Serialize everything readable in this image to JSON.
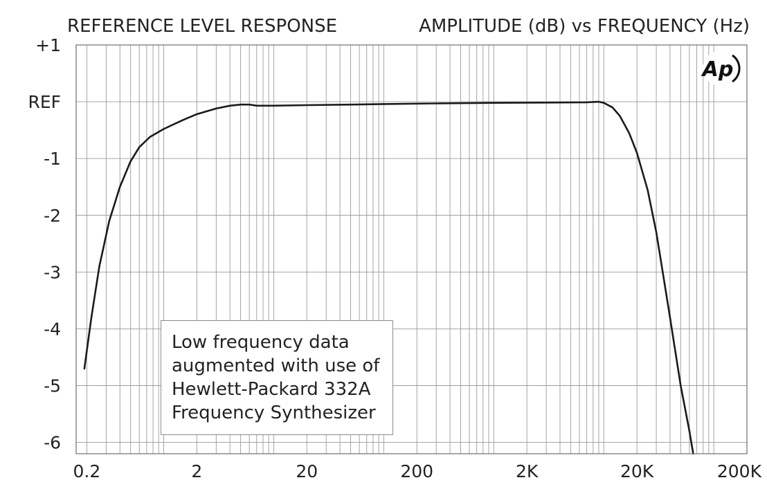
{
  "chart_data": {
    "type": "line",
    "title": "REFERENCE LEVEL RESPONSE",
    "subtitle": "AMPLITUDE (dB) vs FREQUENCY (Hz)",
    "x_scale": "log",
    "xlim": [
      0.16,
      200000
    ],
    "ylim": [
      -6.2,
      1
    ],
    "x_ticks": [
      {
        "value": 0.2,
        "label": "0.2"
      },
      {
        "value": 2,
        "label": "2"
      },
      {
        "value": 20,
        "label": "20"
      },
      {
        "value": 200,
        "label": "200"
      },
      {
        "value": 2000,
        "label": "2K"
      },
      {
        "value": 20000,
        "label": "20K"
      },
      {
        "value": 200000,
        "label": "200K"
      }
    ],
    "y_ticks": [
      {
        "value": 1,
        "label": "+1"
      },
      {
        "value": 0,
        "label": "REF"
      },
      {
        "value": -1,
        "label": "-1"
      },
      {
        "value": -2,
        "label": "-2"
      },
      {
        "value": -3,
        "label": "-3"
      },
      {
        "value": -4,
        "label": "-4"
      },
      {
        "value": -5,
        "label": "-5"
      },
      {
        "value": -6,
        "label": "-6"
      }
    ],
    "grid": true,
    "series": [
      {
        "color": "#1a1a1a",
        "points": [
          [
            0.19,
            -4.7
          ],
          [
            0.22,
            -3.8
          ],
          [
            0.26,
            -2.9
          ],
          [
            0.32,
            -2.1
          ],
          [
            0.4,
            -1.5
          ],
          [
            0.5,
            -1.05
          ],
          [
            0.6,
            -0.8
          ],
          [
            0.75,
            -0.62
          ],
          [
            1.0,
            -0.48
          ],
          [
            1.5,
            -0.32
          ],
          [
            2.0,
            -0.22
          ],
          [
            3.0,
            -0.12
          ],
          [
            4.0,
            -0.07
          ],
          [
            5.0,
            -0.05
          ],
          [
            6.0,
            -0.05
          ],
          [
            7.0,
            -0.07
          ],
          [
            10,
            -0.07
          ],
          [
            20,
            -0.06
          ],
          [
            50,
            -0.05
          ],
          [
            100,
            -0.04
          ],
          [
            300,
            -0.03
          ],
          [
            1000,
            -0.02
          ],
          [
            3000,
            -0.015
          ],
          [
            7000,
            -0.01
          ],
          [
            9000,
            0.0
          ],
          [
            10000,
            -0.02
          ],
          [
            12000,
            -0.1
          ],
          [
            14000,
            -0.25
          ],
          [
            17000,
            -0.55
          ],
          [
            20000,
            -0.9
          ],
          [
            25000,
            -1.55
          ],
          [
            30000,
            -2.3
          ],
          [
            40000,
            -3.8
          ],
          [
            50000,
            -5.0
          ],
          [
            60000,
            -5.8
          ],
          [
            65000,
            -6.2
          ]
        ]
      }
    ]
  },
  "annotation": {
    "lines": [
      "Low frequency data",
      "augmented with use of",
      "Hewlett-Packard 332A",
      "Frequency Synthesizer"
    ]
  },
  "logo": {
    "text": "Ap"
  }
}
